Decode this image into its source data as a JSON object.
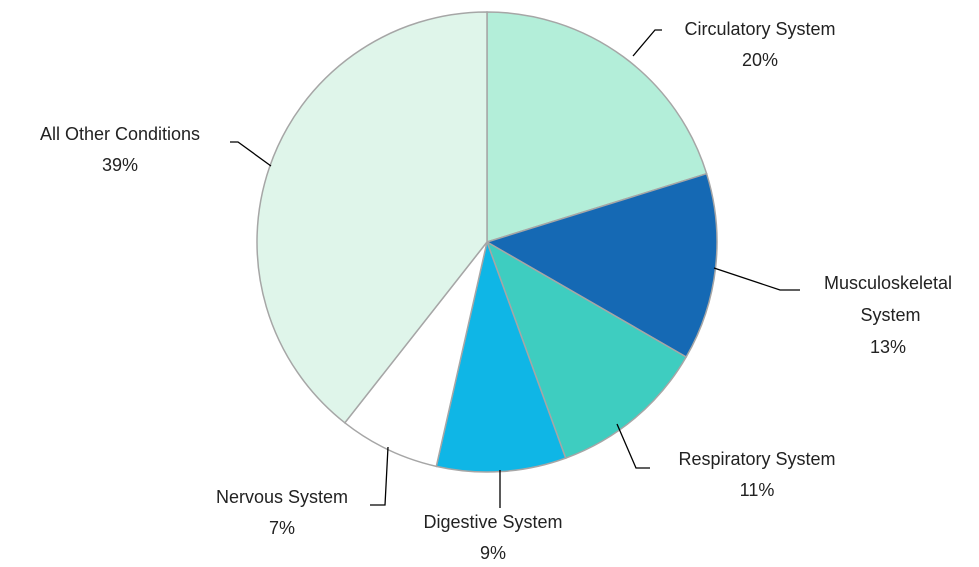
{
  "chart_data": {
    "type": "pie",
    "categories": [
      "Circulatory System",
      "Musculoskeletal System",
      "Respiratory System",
      "Digestive System",
      "Nervous System",
      "All Other Conditions"
    ],
    "values": [
      20,
      13,
      11,
      9,
      7,
      39
    ],
    "value_labels": [
      "20%",
      "13%",
      "11%",
      "9%",
      "7%",
      "39%"
    ],
    "colors": [
      "#b3eed9",
      "#1569b4",
      "#3ecdc0",
      "#0fb6e6",
      "#ffffff",
      "#dff5ea"
    ]
  }
}
